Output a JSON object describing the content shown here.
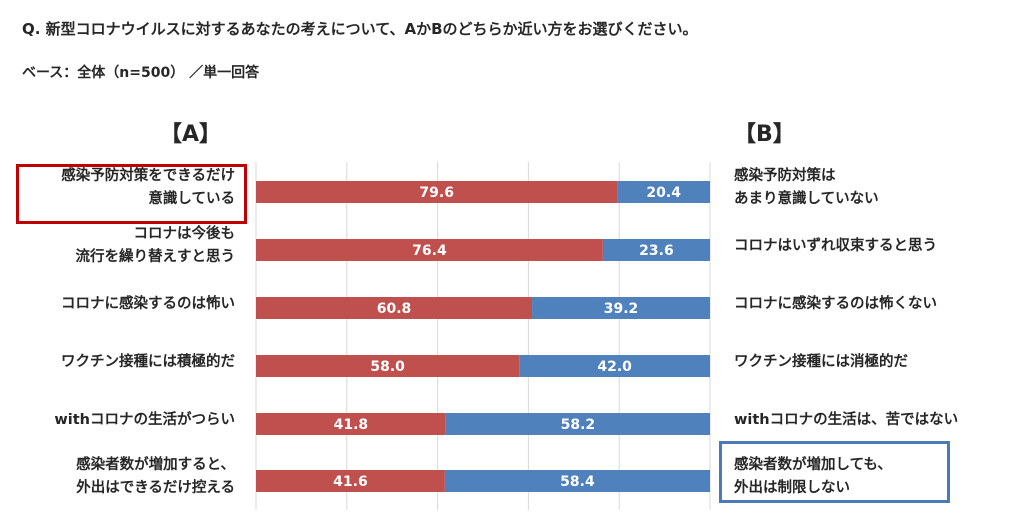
{
  "header": {
    "question": "Q. 新型コロナウイルスに対するあなたの考えについて、AかBのどちらか近い方をお選びください。",
    "base": "ベース：全体（n=500）  ／単一回答"
  },
  "colors": {
    "a": "#c0504d",
    "b": "#4f81bd",
    "highlight_a": "#c00000",
    "highlight_b": "#4a7ab8",
    "grid": "#d9d9d9"
  },
  "chart_data": {
    "type": "bar",
    "stacked": true,
    "orientation": "horizontal",
    "group_a_label": "【A】",
    "group_b_label": "【B】",
    "categories": [
      {
        "a": [
          "感染予防対策をできるだけ",
          "意識している"
        ],
        "b": [
          "感染予防対策は",
          "あまり意識していない"
        ]
      },
      {
        "a": [
          "コロナは今後も",
          "流行を繰り替えすと思う"
        ],
        "b": [
          "コロナはいずれ収束すると思う"
        ]
      },
      {
        "a": [
          "コロナに感染するのは怖い"
        ],
        "b": [
          "コロナに感染するのは怖くない"
        ]
      },
      {
        "a": [
          "ワクチン接種には積極的だ"
        ],
        "b": [
          "ワクチン接種には消極的だ"
        ]
      },
      {
        "a": [
          "withコロナの生活がつらい"
        ],
        "b": [
          "withコロナの生活は、苦ではない"
        ]
      },
      {
        "a": [
          "感染者数が増加すると、",
          "外出はできるだけ控える"
        ],
        "b": [
          "感染者数が増加しても、",
          "外出は制限しない"
        ]
      }
    ],
    "series": [
      {
        "values": [
          79.6,
          76.4,
          60.8,
          58.0,
          41.8,
          41.6
        ]
      },
      {
        "values": [
          20.4,
          23.6,
          39.2,
          42.0,
          58.2,
          58.4
        ]
      }
    ],
    "value_labels": {
      "a": [
        "79.6",
        "76.4",
        "60.8",
        "58.0",
        "41.8",
        "41.6"
      ],
      "b": [
        "20.4",
        "23.6",
        "39.2",
        "42.0",
        "58.2",
        "58.4"
      ]
    },
    "xlim": [
      0,
      100
    ],
    "grid": true,
    "highlighted": {
      "a_row": 0,
      "b_row": 5
    }
  }
}
